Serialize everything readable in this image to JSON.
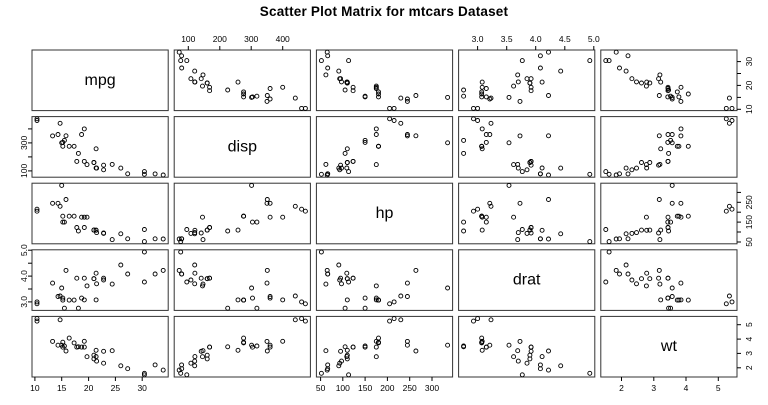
{
  "title": "Scatter Plot Matrix for mtcars Dataset",
  "colors": {
    "background": "#ffffff",
    "foreground": "#000000",
    "panel_border": "#333333",
    "point_stroke": "#000000"
  },
  "chart_data": {
    "type": "scatter",
    "subtype": "pairs-matrix",
    "title": "Scatter Plot Matrix for mtcars Dataset",
    "legend": "none",
    "grid": "off",
    "variables": [
      "mpg",
      "disp",
      "hp",
      "drat",
      "wt"
    ],
    "observations": {
      "mpg": [
        21.0,
        21.0,
        22.8,
        21.4,
        18.7,
        18.1,
        14.3,
        24.4,
        22.8,
        19.2,
        17.8,
        16.4,
        17.3,
        15.2,
        10.4,
        10.4,
        14.7,
        32.4,
        30.4,
        33.9,
        21.5,
        15.5,
        15.2,
        13.3,
        19.2,
        27.3,
        26.0,
        30.4,
        15.8,
        19.7,
        15.0,
        21.4
      ],
      "disp": [
        160,
        160,
        108,
        258,
        360,
        225,
        360,
        146.7,
        140.8,
        167.6,
        167.6,
        275.8,
        275.8,
        275.8,
        472,
        460,
        440,
        78.7,
        75.7,
        71.1,
        120.1,
        318,
        304,
        350,
        400,
        79,
        120.3,
        95.1,
        351,
        145,
        301,
        121
      ],
      "hp": [
        110,
        110,
        93,
        110,
        175,
        105,
        245,
        62,
        95,
        123,
        123,
        180,
        180,
        180,
        205,
        215,
        230,
        66,
        52,
        65,
        97,
        150,
        150,
        245,
        175,
        66,
        91,
        113,
        264,
        175,
        335,
        109
      ],
      "drat": [
        3.9,
        3.9,
        3.85,
        3.08,
        3.15,
        2.76,
        3.21,
        3.69,
        3.92,
        3.92,
        3.92,
        3.07,
        3.07,
        3.07,
        2.93,
        3.0,
        3.23,
        4.08,
        4.93,
        4.22,
        3.7,
        2.76,
        3.15,
        3.73,
        3.08,
        4.08,
        4.43,
        3.77,
        4.22,
        3.62,
        3.54,
        4.11
      ],
      "wt": [
        2.62,
        2.875,
        2.32,
        3.215,
        3.44,
        3.46,
        3.57,
        3.19,
        3.15,
        3.44,
        3.44,
        4.07,
        3.73,
        3.78,
        5.25,
        5.424,
        5.345,
        2.2,
        1.615,
        1.835,
        2.465,
        3.52,
        3.435,
        3.84,
        3.845,
        1.935,
        2.14,
        1.513,
        3.17,
        2.77,
        3.57,
        2.78
      ]
    },
    "axes": {
      "mpg": {
        "tick_values": [
          10,
          15,
          20,
          25,
          30
        ],
        "tick_labels": [
          "10",
          "15",
          "20",
          "25",
          "30"
        ],
        "side_tick_labels": [
          "10",
          "",
          "20",
          "",
          "30"
        ]
      },
      "disp": {
        "tick_values": [
          100,
          200,
          300,
          400
        ],
        "tick_labels": [
          "100",
          "200",
          "300",
          "400"
        ],
        "side_tick_labels": [
          "100",
          "",
          "300",
          ""
        ]
      },
      "hp": {
        "tick_values": [
          50,
          100,
          150,
          200,
          250,
          300
        ],
        "tick_labels": [
          "50",
          "100",
          "150",
          "200",
          "250",
          "300"
        ],
        "side_tick_labels": [
          "50",
          "",
          "150",
          "",
          "250",
          ""
        ]
      },
      "drat": {
        "tick_values": [
          3.0,
          3.5,
          4.0,
          4.5,
          5.0
        ],
        "tick_labels": [
          "3.0",
          "3.5",
          "4.0",
          "4.5",
          "5.0"
        ],
        "side_tick_labels": [
          "3.0",
          "",
          "4.0",
          "",
          "5.0"
        ]
      },
      "wt": {
        "tick_values": [
          2,
          3,
          4,
          5
        ],
        "tick_labels": [
          "2",
          "3",
          "4",
          "5"
        ],
        "side_tick_labels": [
          "2",
          "3",
          "4",
          "5"
        ]
      }
    },
    "range_expansion": 0.04
  }
}
